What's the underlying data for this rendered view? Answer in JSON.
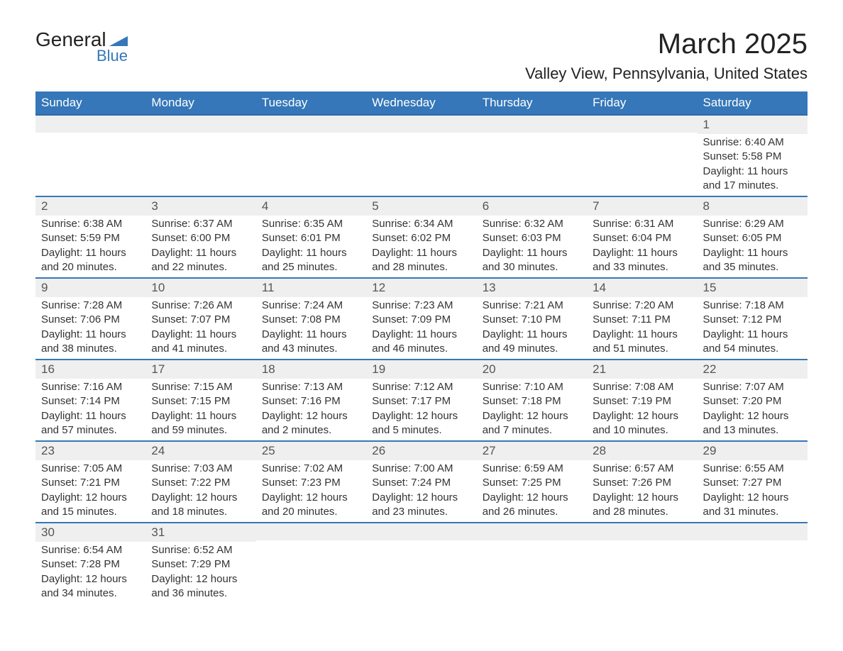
{
  "brand": {
    "general": "General",
    "blue": "Blue",
    "triangle_color": "#3577b8"
  },
  "header": {
    "month": "March 2025",
    "location": "Valley View, Pennsylvania, United States"
  },
  "calendar": {
    "header_bg": "#3577b8",
    "header_fg": "#ffffff",
    "row_divider": "#3577b8",
    "daynum_bg": "#efefef",
    "text_color": "#333333",
    "columns": [
      "Sunday",
      "Monday",
      "Tuesday",
      "Wednesday",
      "Thursday",
      "Friday",
      "Saturday"
    ],
    "weeks": [
      [
        null,
        null,
        null,
        null,
        null,
        null,
        {
          "n": "1",
          "sunrise": "6:40 AM",
          "sunset": "5:58 PM",
          "daylight": "11 hours and 17 minutes."
        }
      ],
      [
        {
          "n": "2",
          "sunrise": "6:38 AM",
          "sunset": "5:59 PM",
          "daylight": "11 hours and 20 minutes."
        },
        {
          "n": "3",
          "sunrise": "6:37 AM",
          "sunset": "6:00 PM",
          "daylight": "11 hours and 22 minutes."
        },
        {
          "n": "4",
          "sunrise": "6:35 AM",
          "sunset": "6:01 PM",
          "daylight": "11 hours and 25 minutes."
        },
        {
          "n": "5",
          "sunrise": "6:34 AM",
          "sunset": "6:02 PM",
          "daylight": "11 hours and 28 minutes."
        },
        {
          "n": "6",
          "sunrise": "6:32 AM",
          "sunset": "6:03 PM",
          "daylight": "11 hours and 30 minutes."
        },
        {
          "n": "7",
          "sunrise": "6:31 AM",
          "sunset": "6:04 PM",
          "daylight": "11 hours and 33 minutes."
        },
        {
          "n": "8",
          "sunrise": "6:29 AM",
          "sunset": "6:05 PM",
          "daylight": "11 hours and 35 minutes."
        }
      ],
      [
        {
          "n": "9",
          "sunrise": "7:28 AM",
          "sunset": "7:06 PM",
          "daylight": "11 hours and 38 minutes."
        },
        {
          "n": "10",
          "sunrise": "7:26 AM",
          "sunset": "7:07 PM",
          "daylight": "11 hours and 41 minutes."
        },
        {
          "n": "11",
          "sunrise": "7:24 AM",
          "sunset": "7:08 PM",
          "daylight": "11 hours and 43 minutes."
        },
        {
          "n": "12",
          "sunrise": "7:23 AM",
          "sunset": "7:09 PM",
          "daylight": "11 hours and 46 minutes."
        },
        {
          "n": "13",
          "sunrise": "7:21 AM",
          "sunset": "7:10 PM",
          "daylight": "11 hours and 49 minutes."
        },
        {
          "n": "14",
          "sunrise": "7:20 AM",
          "sunset": "7:11 PM",
          "daylight": "11 hours and 51 minutes."
        },
        {
          "n": "15",
          "sunrise": "7:18 AM",
          "sunset": "7:12 PM",
          "daylight": "11 hours and 54 minutes."
        }
      ],
      [
        {
          "n": "16",
          "sunrise": "7:16 AM",
          "sunset": "7:14 PM",
          "daylight": "11 hours and 57 minutes."
        },
        {
          "n": "17",
          "sunrise": "7:15 AM",
          "sunset": "7:15 PM",
          "daylight": "11 hours and 59 minutes."
        },
        {
          "n": "18",
          "sunrise": "7:13 AM",
          "sunset": "7:16 PM",
          "daylight": "12 hours and 2 minutes."
        },
        {
          "n": "19",
          "sunrise": "7:12 AM",
          "sunset": "7:17 PM",
          "daylight": "12 hours and 5 minutes."
        },
        {
          "n": "20",
          "sunrise": "7:10 AM",
          "sunset": "7:18 PM",
          "daylight": "12 hours and 7 minutes."
        },
        {
          "n": "21",
          "sunrise": "7:08 AM",
          "sunset": "7:19 PM",
          "daylight": "12 hours and 10 minutes."
        },
        {
          "n": "22",
          "sunrise": "7:07 AM",
          "sunset": "7:20 PM",
          "daylight": "12 hours and 13 minutes."
        }
      ],
      [
        {
          "n": "23",
          "sunrise": "7:05 AM",
          "sunset": "7:21 PM",
          "daylight": "12 hours and 15 minutes."
        },
        {
          "n": "24",
          "sunrise": "7:03 AM",
          "sunset": "7:22 PM",
          "daylight": "12 hours and 18 minutes."
        },
        {
          "n": "25",
          "sunrise": "7:02 AM",
          "sunset": "7:23 PM",
          "daylight": "12 hours and 20 minutes."
        },
        {
          "n": "26",
          "sunrise": "7:00 AM",
          "sunset": "7:24 PM",
          "daylight": "12 hours and 23 minutes."
        },
        {
          "n": "27",
          "sunrise": "6:59 AM",
          "sunset": "7:25 PM",
          "daylight": "12 hours and 26 minutes."
        },
        {
          "n": "28",
          "sunrise": "6:57 AM",
          "sunset": "7:26 PM",
          "daylight": "12 hours and 28 minutes."
        },
        {
          "n": "29",
          "sunrise": "6:55 AM",
          "sunset": "7:27 PM",
          "daylight": "12 hours and 31 minutes."
        }
      ],
      [
        {
          "n": "30",
          "sunrise": "6:54 AM",
          "sunset": "7:28 PM",
          "daylight": "12 hours and 34 minutes."
        },
        {
          "n": "31",
          "sunrise": "6:52 AM",
          "sunset": "7:29 PM",
          "daylight": "12 hours and 36 minutes."
        },
        null,
        null,
        null,
        null,
        null
      ]
    ],
    "labels": {
      "sunrise": "Sunrise:",
      "sunset": "Sunset:",
      "daylight": "Daylight:"
    }
  }
}
